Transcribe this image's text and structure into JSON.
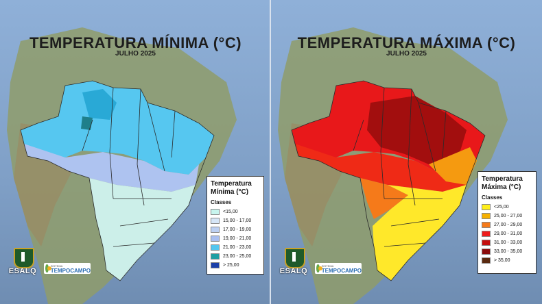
{
  "panels": {
    "min": {
      "title": "TEMPERATURA MÍNIMA (°C)",
      "subtitle": "JULHO 2025",
      "legend": {
        "title": "Temperatura Mínima (°C)",
        "classes_label": "Classes",
        "items": [
          {
            "label": "<15,00",
            "color": "#c8f5ee"
          },
          {
            "label": "15,00 - 17,00",
            "color": "#d6e6f7"
          },
          {
            "label": "17,00 - 19,00",
            "color": "#bcd0f2"
          },
          {
            "label": "19,00 - 21,00",
            "color": "#a9bff0"
          },
          {
            "label": "21,00 - 23,00",
            "color": "#52c6ef"
          },
          {
            "label": "23,00 - 25,00",
            "color": "#1f9fa3"
          },
          {
            "label": "> 25,00",
            "color": "#1b3fa8"
          }
        ]
      }
    },
    "max": {
      "title": "TEMPERATURA MÁXIMA (°C)",
      "subtitle": "JULHO 2025",
      "legend": {
        "title": "Temperatura Máxima (°C)",
        "classes_label": "Classes",
        "items": [
          {
            "label": "<25,00",
            "color": "#ffef1a"
          },
          {
            "label": "25,00 - 27,00",
            "color": "#f6b000"
          },
          {
            "label": "27,00 - 29,00",
            "color": "#f57a1a"
          },
          {
            "label": "29,00 - 31,00",
            "color": "#ee1c1c"
          },
          {
            "label": "31,00 - 33,00",
            "color": "#c40f0f"
          },
          {
            "label": "33,00 - 35,00",
            "color": "#8a0b0b"
          },
          {
            "label": "> 35,00",
            "color": "#5a2a10"
          }
        ]
      }
    }
  },
  "logos": {
    "esalq": "ESALQ",
    "tempocampo_small": "SISTEMA",
    "tempocampo_big": "TEMPOCAMPO"
  }
}
